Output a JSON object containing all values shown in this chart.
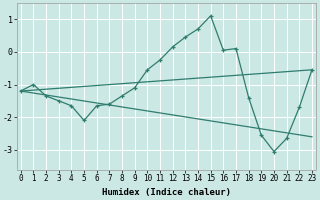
{
  "xlabel": "Humidex (Indice chaleur)",
  "bg_color": "#cce8e5",
  "line_color": "#2e7d6e",
  "grid_color": "#ffffff",
  "xlim": [
    -0.3,
    23.3
  ],
  "ylim": [
    -3.6,
    1.5
  ],
  "yticks": [
    -3,
    -2,
    -1,
    0,
    1
  ],
  "xticks": [
    0,
    1,
    2,
    3,
    4,
    5,
    6,
    7,
    8,
    9,
    10,
    11,
    12,
    13,
    14,
    15,
    16,
    17,
    18,
    19,
    20,
    21,
    22,
    23
  ],
  "line1_x": [
    0,
    1,
    2,
    3,
    4,
    5,
    6,
    7,
    8,
    9,
    10,
    11,
    12,
    13,
    14,
    15,
    16,
    17,
    18,
    19,
    20,
    21,
    22,
    23
  ],
  "line1_y": [
    -1.2,
    -1.0,
    -1.35,
    -1.5,
    -1.65,
    -2.1,
    -1.65,
    -1.6,
    -1.35,
    -1.1,
    -0.55,
    -0.25,
    0.15,
    0.45,
    0.7,
    1.1,
    0.05,
    0.1,
    -1.4,
    -2.55,
    -3.05,
    -2.65,
    -1.7,
    -0.55
  ],
  "line2_x": [
    0,
    23
  ],
  "line2_y": [
    -1.2,
    -2.6
  ],
  "line3_x": [
    0,
    23
  ],
  "line3_y": [
    -1.2,
    -0.55
  ],
  "xlabel_fontsize": 6.5,
  "tick_fontsize": 5.5
}
